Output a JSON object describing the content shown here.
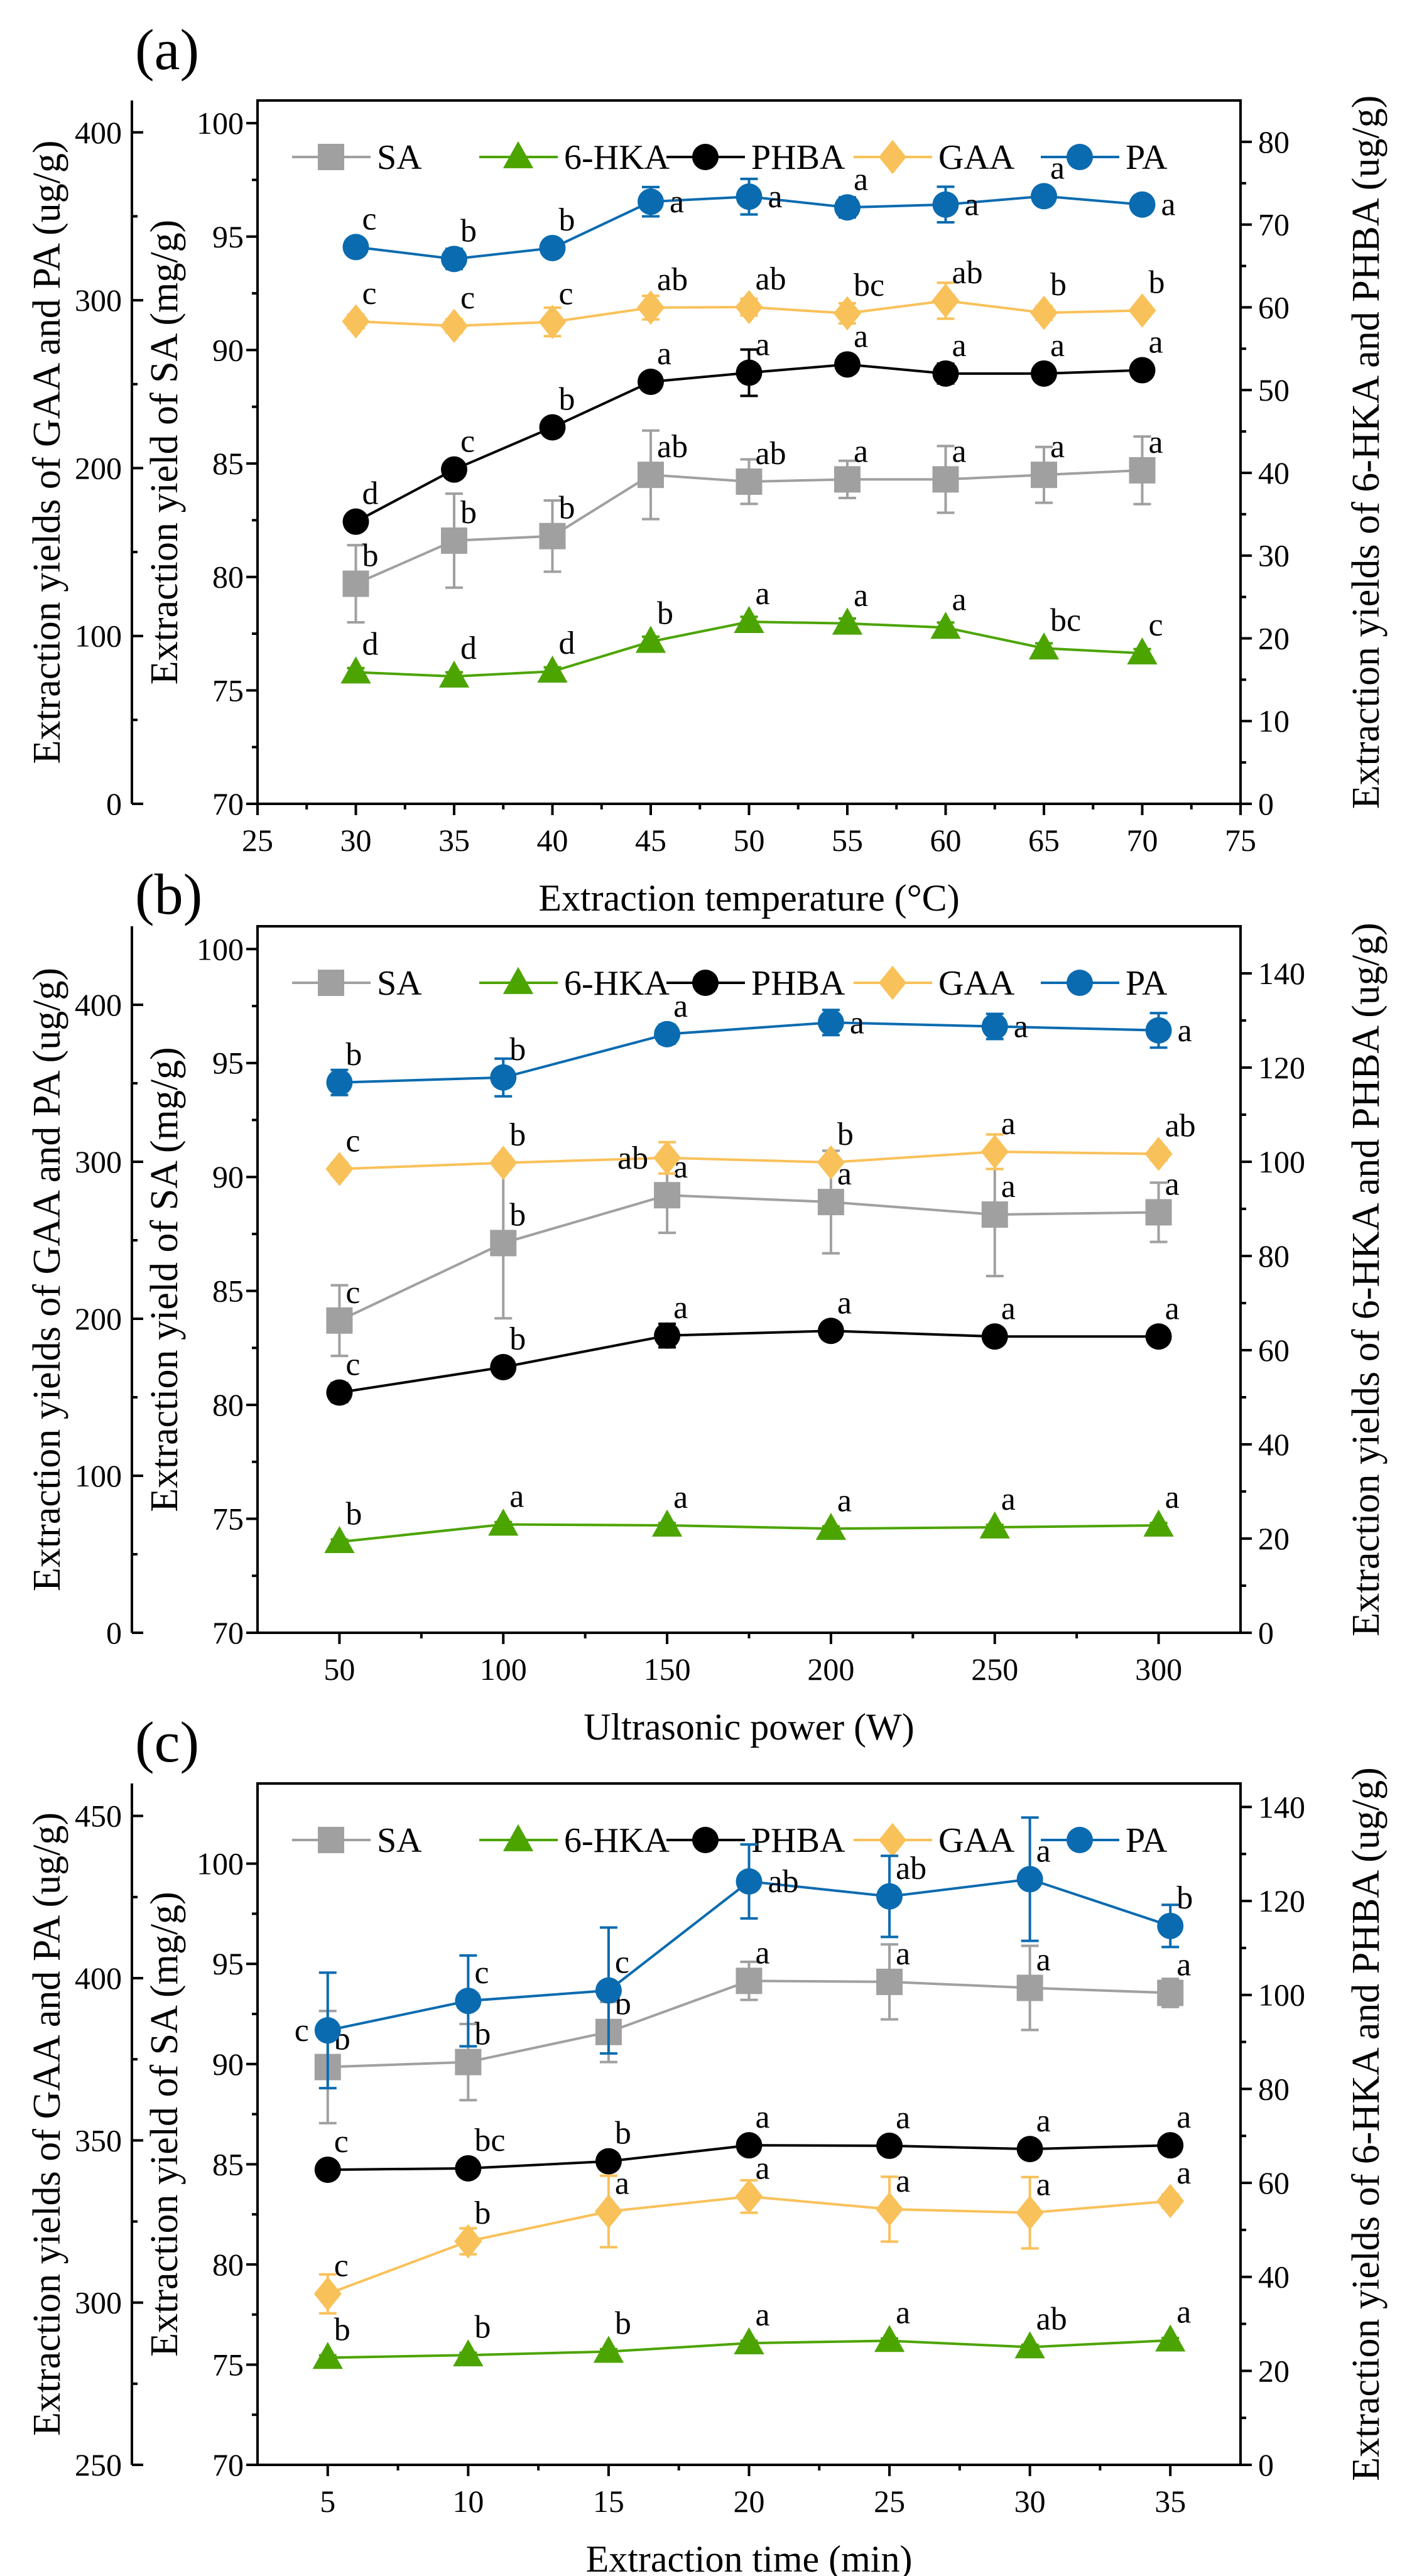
{
  "colors": {
    "SA": "#a0a0a0",
    "6-HKA": "#4ca400",
    "PHBA": "#000000",
    "GAA": "#f9c15a",
    "PA": "#0a6bb0"
  },
  "chart_data": [
    {
      "panel": "(a)",
      "type": "line",
      "xlabel": "Extraction temperature (°C)",
      "ylabel_outer": "Extraction yields of GAA and PA (ug/g)",
      "ylabel_left": "Extraction yield of SA (mg/g)",
      "ylabel_right": "Extraction yields of 6-HKA and PHBA (ug/g)",
      "xlim": [
        25,
        75
      ],
      "x_ticks": [
        25,
        30,
        35,
        40,
        45,
        50,
        55,
        60,
        65,
        70,
        75
      ],
      "axes": {
        "sa": {
          "range": [
            70,
            101
          ],
          "ticks": [
            70,
            75,
            80,
            85,
            90,
            95,
            100
          ]
        },
        "outer": {
          "range": [
            0,
            419
          ],
          "ticks": [
            0,
            100,
            200,
            300,
            400
          ]
        },
        "right": {
          "range": [
            0,
            85
          ],
          "ticks": [
            0,
            10,
            20,
            30,
            40,
            50,
            60,
            70,
            80
          ]
        }
      },
      "x": [
        30,
        35,
        40,
        45,
        50,
        55,
        60,
        65,
        70
      ],
      "series": [
        {
          "name": "SA",
          "axis": "sa",
          "marker": "square",
          "values": [
            79.7,
            81.6,
            81.8,
            84.5,
            84.2,
            84.3,
            84.3,
            84.5,
            84.7
          ],
          "errors": [
            1.7,
            2.07,
            1.57,
            1.95,
            0.98,
            0.82,
            1.47,
            1.23,
            1.49
          ],
          "letters": [
            "b",
            "b",
            "b",
            "ab",
            "ab",
            "a",
            "a",
            "a",
            "a"
          ]
        },
        {
          "name": "6-HKA",
          "axis": "right",
          "marker": "triangle",
          "values": [
            15.9,
            15.4,
            16.0,
            19.6,
            22.0,
            21.8,
            21.3,
            18.8,
            18.2
          ],
          "errors": [
            0.5,
            0.5,
            0.5,
            0.6,
            0.6,
            0.6,
            0.6,
            0.6,
            0.5
          ],
          "letters": [
            "d",
            "d",
            "d",
            "b",
            "a",
            "a",
            "a",
            "bc",
            "c"
          ]
        },
        {
          "name": "PHBA",
          "axis": "right",
          "marker": "circle",
          "values": [
            34.1,
            40.4,
            45.5,
            51.0,
            52.1,
            53.1,
            52.0,
            52.0,
            52.4
          ],
          "errors": [
            0.8,
            0.7,
            0.8,
            0.8,
            2.8,
            1.0,
            1.2,
            0.8,
            0.6
          ],
          "letters": [
            "d",
            "c",
            "b",
            "a",
            "a",
            "a",
            "a",
            "a",
            "a"
          ]
        },
        {
          "name": "GAA",
          "axis": "outer",
          "marker": "diamond",
          "values": [
            287.4,
            284.7,
            287.1,
            295.6,
            295.9,
            292.2,
            299.7,
            292.5,
            293.9
          ],
          "errors": [
            4,
            4,
            8.5,
            7,
            5,
            6,
            10.7,
            4,
            3
          ],
          "letters": [
            "c",
            "c",
            "c",
            "ab",
            "ab",
            "bc",
            "ab",
            "b",
            "b"
          ]
        },
        {
          "name": "PA",
          "axis": "outer",
          "marker": "circle",
          "values": [
            331.7,
            324.6,
            331.1,
            358.7,
            361.7,
            355.3,
            357.0,
            362.0,
            357.0
          ],
          "errors": [
            3,
            6,
            4,
            8.7,
            10.6,
            6,
            10.6,
            3,
            5
          ],
          "letters": [
            "c",
            "b",
            "b",
            "a",
            "a",
            "a",
            "a",
            "a",
            "a"
          ]
        }
      ]
    },
    {
      "panel": "(b)",
      "type": "line",
      "xlabel": "Ultrasonic power (W)",
      "ylabel_outer": "Extraction yields of GAA and PA (ug/g)",
      "ylabel_left": "Extraction yield of SA (mg/g)",
      "ylabel_right": "Extraction yields of 6-HKA and PHBA (ug/g)",
      "xlim": [
        25,
        325
      ],
      "x_ticks": [
        50,
        100,
        150,
        200,
        250,
        300
      ],
      "axes": {
        "sa": {
          "range": [
            70,
            101
          ],
          "ticks": [
            70,
            75,
            80,
            85,
            90,
            95,
            100
          ]
        },
        "outer": {
          "range": [
            0,
            450
          ],
          "ticks": [
            0,
            100,
            200,
            300,
            400
          ]
        },
        "right": {
          "range": [
            0,
            150
          ],
          "ticks": [
            0,
            20,
            40,
            60,
            80,
            100,
            120,
            140
          ]
        }
      },
      "x": [
        50,
        100,
        150,
        200,
        250,
        300
      ],
      "series": [
        {
          "name": "SA",
          "axis": "sa",
          "marker": "square",
          "values": [
            83.7,
            87.1,
            89.2,
            88.9,
            88.35,
            88.45
          ],
          "errors": [
            1.55,
            3.3,
            1.65,
            2.25,
            2.7,
            1.3
          ],
          "letters": [
            "c",
            "b",
            "a",
            "a",
            "a",
            "a"
          ]
        },
        {
          "name": "6-HKA",
          "axis": "right",
          "marker": "triangle",
          "values": [
            19.3,
            23.0,
            22.8,
            22.1,
            22.4,
            22.8
          ],
          "errors": [
            0.5,
            0.5,
            0.5,
            0.5,
            0.5,
            0.5
          ],
          "letters": [
            "b",
            "a",
            "a",
            "a",
            "a",
            "a"
          ]
        },
        {
          "name": "PHBA",
          "axis": "right",
          "marker": "circle",
          "values": [
            51.0,
            56.4,
            63.1,
            64.1,
            62.9,
            62.9
          ],
          "errors": [
            2,
            1.5,
            2.5,
            1.5,
            1.5,
            1.5
          ],
          "letters": [
            "c",
            "b",
            "a",
            "a",
            "a",
            "a"
          ]
        },
        {
          "name": "GAA",
          "axis": "outer",
          "marker": "diamond",
          "values": [
            295.4,
            299.3,
            302.5,
            299.6,
            306.4,
            305.0
          ],
          "errors": [
            4,
            4,
            10,
            3,
            11,
            4
          ],
          "letters": [
            "c",
            "b",
            "ab",
            "b",
            "a",
            "ab"
          ]
        },
        {
          "name": "PA",
          "axis": "outer",
          "marker": "circle",
          "values": [
            350.5,
            353.7,
            381.3,
            388.7,
            386.2,
            383.7
          ],
          "errors": [
            8,
            12,
            6,
            8,
            8,
            11
          ],
          "letters": [
            "b",
            "b",
            "a",
            "a",
            "a",
            "a"
          ]
        }
      ]
    },
    {
      "panel": "(c)",
      "type": "line",
      "xlabel": "Extraction time (min)",
      "ylabel_outer": "Extraction yields of GAA and PA (ug/g)",
      "ylabel_left": "Extraction yield of SA (mg/g)",
      "ylabel_right": "Extraction yields of 6-HKA and PHBA (ug/g)",
      "xlim": [
        2.5,
        37.5
      ],
      "x_ticks": [
        5,
        10,
        15,
        20,
        25,
        30,
        35
      ],
      "axes": {
        "sa": {
          "range": [
            70,
            104
          ],
          "ticks": [
            70,
            75,
            80,
            85,
            90,
            95,
            100
          ]
        },
        "outer": {
          "range": [
            250,
            460
          ],
          "ticks": [
            250,
            300,
            350,
            400,
            450
          ]
        },
        "right": {
          "range": [
            0,
            145
          ],
          "ticks": [
            0,
            20,
            40,
            60,
            80,
            100,
            120,
            140
          ]
        }
      },
      "x": [
        5,
        10,
        15,
        20,
        25,
        30,
        35
      ],
      "series": [
        {
          "name": "SA",
          "axis": "sa",
          "marker": "square",
          "values": [
            89.85,
            90.1,
            91.6,
            94.15,
            94.1,
            93.8,
            93.55
          ],
          "errors": [
            2.8,
            1.9,
            1.5,
            0.95,
            1.87,
            2.1,
            0.7
          ],
          "letters": [
            "b",
            "b",
            "b",
            "a",
            "a",
            "a",
            "a"
          ]
        },
        {
          "name": "6-HKA",
          "axis": "right",
          "marker": "triangle",
          "values": [
            22.8,
            23.35,
            24.1,
            25.9,
            26.4,
            25.05,
            26.5
          ],
          "errors": [
            0.5,
            0.5,
            0.5,
            0.5,
            0.5,
            0.5,
            0.5
          ],
          "letters": [
            "b",
            "b",
            "b",
            "a",
            "a",
            "ab",
            "a"
          ]
        },
        {
          "name": "PHBA",
          "axis": "right",
          "marker": "circle",
          "values": [
            62.8,
            63.1,
            64.6,
            68.0,
            67.9,
            67.2,
            68.0
          ],
          "errors": [
            1,
            1.2,
            1,
            1,
            0.8,
            0.8,
            0.8
          ],
          "letters": [
            "c",
            "bc",
            "b",
            "a",
            "a",
            "a",
            "a"
          ]
        },
        {
          "name": "GAA",
          "axis": "outer",
          "marker": "diamond",
          "values": [
            302.7,
            318.9,
            328.1,
            332.7,
            328.8,
            327.7,
            331.3
          ],
          "errors": [
            6,
            4,
            11,
            5,
            10,
            11,
            2
          ],
          "letters": [
            "c",
            "b",
            "a",
            "a",
            "a",
            "a",
            "a"
          ]
        },
        {
          "name": "PA",
          "axis": "outer",
          "marker": "circle",
          "values": [
            383.9,
            393.0,
            396.2,
            429.8,
            425.2,
            430.5,
            416.1
          ],
          "errors": [
            17.8,
            14,
            19.4,
            11.4,
            12.5,
            19,
            6.5
          ],
          "letters": [
            "c",
            "c",
            "c",
            "ab",
            "ab",
            "a",
            "b"
          ]
        }
      ]
    }
  ]
}
